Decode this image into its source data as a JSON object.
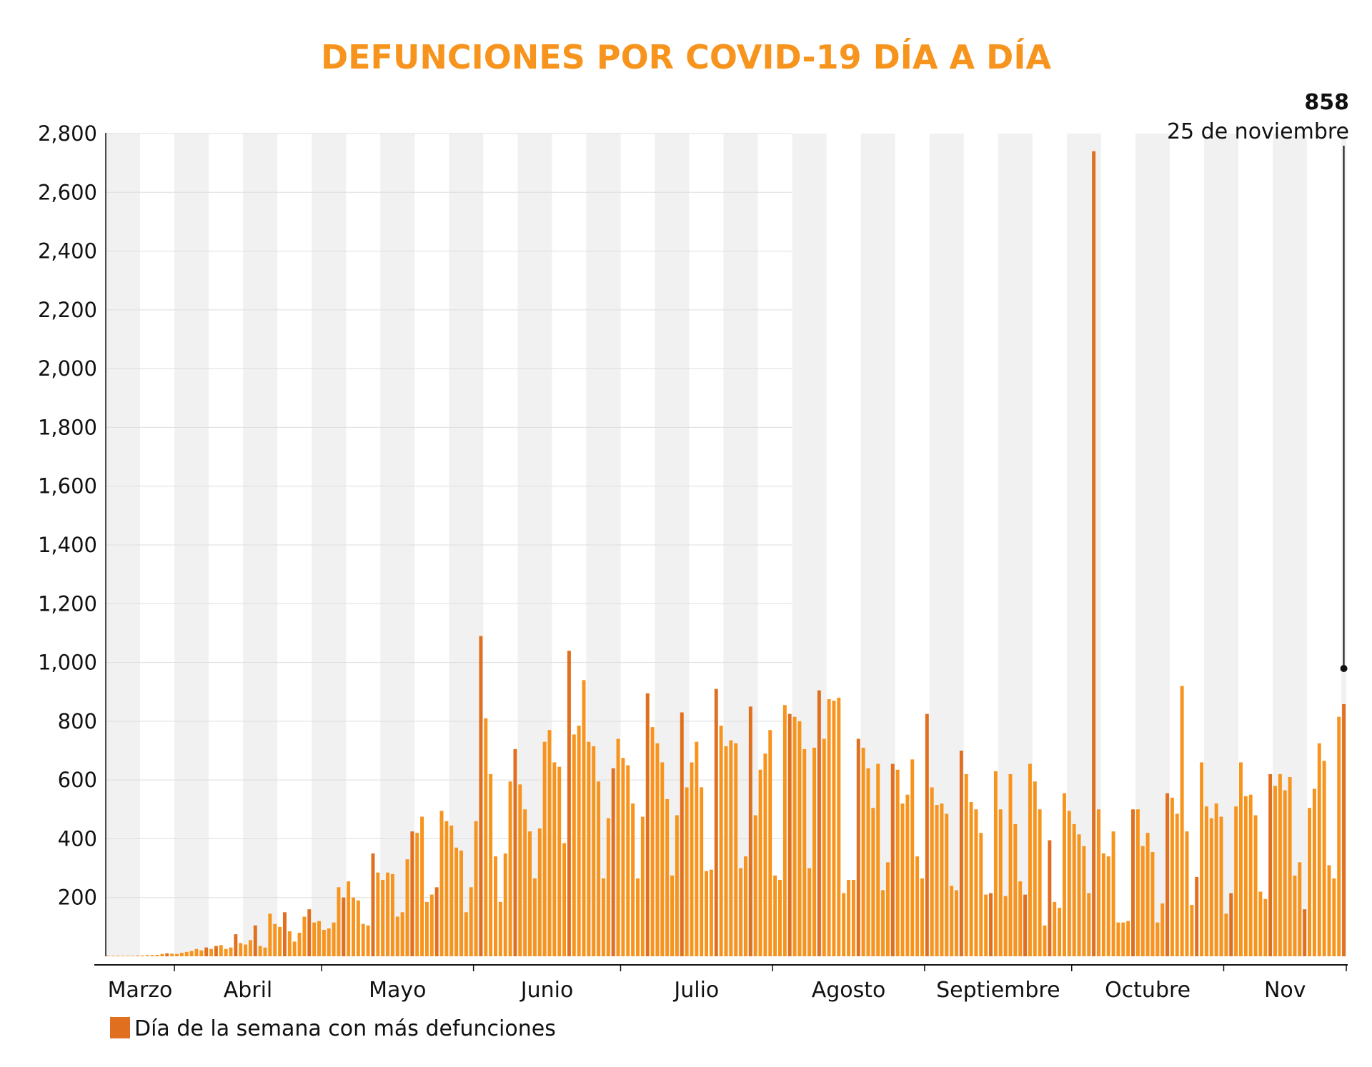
{
  "colors": {
    "title": "#f7941d",
    "bar": "#f7941d",
    "bar_highlight": "#e0701f",
    "week_band": "#f1f1f1",
    "grid": "#dddddd",
    "axis": "#111111"
  },
  "chart_data": {
    "type": "bar",
    "title": "DEFUNCIONES POR COVID-19 DÍA A DÍA",
    "xlabel": "",
    "ylabel": "",
    "ylim": [
      0,
      2800
    ],
    "y_ticks": [
      200,
      400,
      600,
      800,
      1000,
      1200,
      1400,
      1600,
      1800,
      2000,
      2200,
      2400,
      2600,
      2800
    ],
    "y_tick_labels": [
      "200",
      "400",
      "600",
      "800",
      "1,000",
      "1,200",
      "1,400",
      "1,600",
      "1,800",
      "2,000",
      "2,200",
      "2,400",
      "2,600",
      "2,800"
    ],
    "x_start": "2020-03-18",
    "x_end": "2020-11-25",
    "months": [
      {
        "label": "Marzo",
        "start": "2020-03-18"
      },
      {
        "label": "Abril",
        "start": "2020-04-01"
      },
      {
        "label": "Mayo",
        "start": "2020-05-01"
      },
      {
        "label": "Junio",
        "start": "2020-06-01"
      },
      {
        "label": "Julio",
        "start": "2020-07-01"
      },
      {
        "label": "Agosto",
        "start": "2020-08-01"
      },
      {
        "label": "Septiembre",
        "start": "2020-09-01"
      },
      {
        "label": "Octubre",
        "start": "2020-10-01"
      },
      {
        "label": "Nov",
        "start": "2020-11-01"
      }
    ],
    "grid": true,
    "legend": {
      "label": "Día de la semana con más defunciones",
      "position": "bottom-left"
    },
    "annotation": {
      "value": "858",
      "date_label": "25 de noviembre"
    },
    "series": [
      {
        "values": [
          2,
          2,
          0,
          0,
          1,
          2,
          2,
          3,
          4,
          4,
          5,
          8,
          10,
          9,
          8,
          12,
          15,
          18,
          25,
          20,
          30,
          25,
          35,
          38,
          25,
          30,
          75,
          45,
          40,
          55,
          105,
          35,
          30,
          145,
          110,
          100,
          150,
          85,
          50,
          80,
          135,
          160,
          115,
          120,
          90,
          95,
          115,
          235,
          200,
          255,
          200,
          190,
          110,
          105,
          350,
          285,
          260,
          285,
          280,
          135,
          150,
          330,
          425,
          420,
          475,
          185,
          210,
          235,
          495,
          460,
          445,
          370,
          360,
          150,
          235,
          460,
          1090,
          810,
          620,
          340,
          185,
          350,
          595,
          705,
          585,
          500,
          425,
          265,
          435,
          730,
          770,
          660,
          645,
          385,
          1040,
          755,
          785,
          940,
          730,
          715,
          595,
          265,
          470,
          640,
          740,
          675,
          650,
          520,
          265,
          475,
          895,
          780,
          725,
          660,
          535,
          275,
          480,
          830,
          575,
          660,
          730,
          575,
          290,
          295,
          910,
          785,
          715,
          735,
          725,
          300,
          340,
          850,
          480,
          635,
          690,
          770,
          275,
          260,
          855,
          825,
          815,
          800,
          705,
          300,
          710,
          905,
          740,
          875,
          870,
          880,
          215,
          260,
          260,
          740,
          710,
          640,
          505,
          655,
          225,
          320,
          655,
          635,
          520,
          550,
          670,
          340,
          265,
          825,
          575,
          515,
          520,
          485,
          240,
          225,
          700,
          620,
          525,
          500,
          420,
          210,
          215,
          630,
          500,
          205,
          620,
          450,
          255,
          210,
          655,
          595,
          500,
          105,
          395,
          185,
          165,
          555,
          495,
          450,
          415,
          375,
          215,
          2740,
          500,
          350,
          340,
          425,
          115,
          115,
          120,
          500,
          500,
          375,
          420,
          355,
          115,
          180,
          555,
          540,
          485,
          920,
          425,
          175,
          270,
          660,
          510,
          470,
          520,
          475,
          145,
          215,
          510,
          660,
          545,
          550,
          480,
          220,
          195,
          620,
          580,
          620,
          565,
          610,
          275,
          320,
          160,
          505,
          570,
          725,
          665,
          310,
          265,
          815,
          858
        ],
        "highlight": [
          6,
          12,
          20,
          22,
          26,
          30,
          36,
          41,
          48,
          54,
          62,
          67,
          76,
          83,
          94,
          103,
          110,
          117,
          124,
          131,
          139,
          145,
          153,
          160,
          167,
          174,
          180,
          187,
          192,
          201,
          209,
          216,
          222,
          229,
          237,
          244,
          252,
          259,
          266
        ]
      }
    ]
  }
}
